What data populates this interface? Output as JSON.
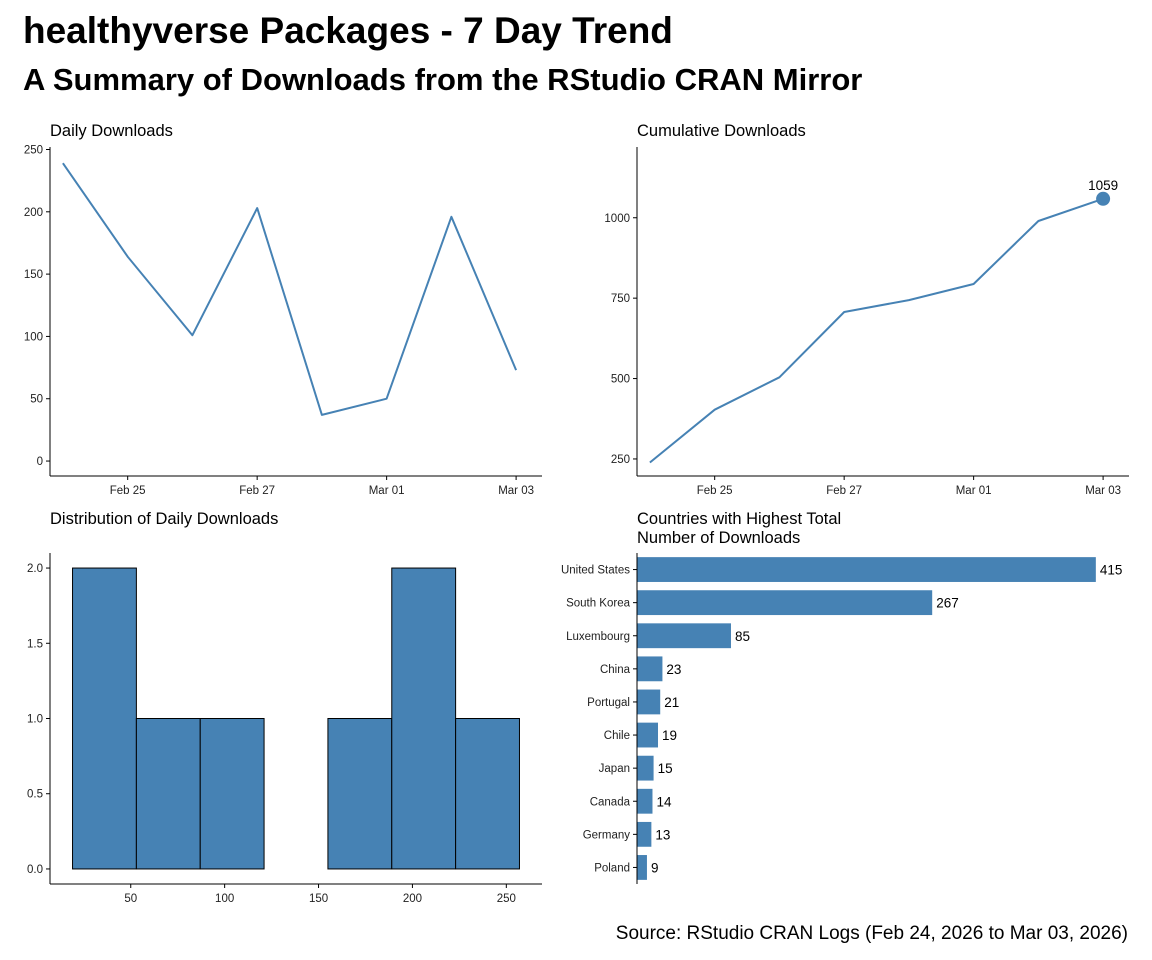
{
  "page": {
    "title": "healthyverse Packages - 7 Day Trend",
    "subtitle": "A Summary of Downloads from the RStudio CRAN Mirror",
    "caption": "Source: RStudio CRAN Logs (Feb 24, 2026 to Mar 03, 2026)"
  },
  "colors": {
    "accent": "#4682b4",
    "axis": "#000000",
    "bar_outline": "#000000"
  },
  "chart_data": [
    {
      "id": "daily",
      "type": "line",
      "title": "Daily Downloads",
      "xlabel": "",
      "ylabel": "",
      "x": [
        "2026-02-24",
        "2026-02-25",
        "2026-02-26",
        "2026-02-27",
        "2026-02-28",
        "2026-03-01",
        "2026-03-02",
        "2026-03-03"
      ],
      "values": [
        239,
        164,
        101,
        203,
        37,
        50,
        196,
        73
      ],
      "xticks": [
        1,
        3,
        5,
        7
      ],
      "xtick_labels": [
        "Feb 25",
        "Feb 27",
        "Mar 01",
        "Mar 03"
      ],
      "yticks": [
        0,
        50,
        100,
        150,
        200,
        250
      ],
      "xlim": [
        -0.2,
        7.4
      ],
      "ylim": [
        -12,
        252
      ],
      "grid": false
    },
    {
      "id": "cumulative",
      "type": "line",
      "title": "Cumulative Downloads",
      "xlabel": "",
      "ylabel": "",
      "x": [
        "2026-02-24",
        "2026-02-25",
        "2026-02-26",
        "2026-02-27",
        "2026-02-28",
        "2026-03-01",
        "2026-03-02",
        "2026-03-03"
      ],
      "values": [
        239,
        403,
        504,
        707,
        744,
        794,
        990,
        1059
      ],
      "xticks": [
        1,
        3,
        5,
        7
      ],
      "xtick_labels": [
        "Feb 25",
        "Feb 27",
        "Mar 01",
        "Mar 03"
      ],
      "yticks": [
        250,
        500,
        750,
        1000
      ],
      "xlim": [
        -0.2,
        7.4
      ],
      "ylim": [
        197,
        1220
      ],
      "end_label": "1059",
      "grid": false
    },
    {
      "id": "histogram",
      "type": "bar",
      "title": "Distribution of Daily Downloads",
      "xlabel": "",
      "ylabel": "",
      "bins": [
        {
          "from": 19,
          "to": 53,
          "count": 2
        },
        {
          "from": 53,
          "to": 87,
          "count": 1
        },
        {
          "from": 87,
          "to": 121,
          "count": 1
        },
        {
          "from": 121,
          "to": 155,
          "count": 0
        },
        {
          "from": 155,
          "to": 189,
          "count": 1
        },
        {
          "from": 189,
          "to": 223,
          "count": 2
        },
        {
          "from": 223,
          "to": 257,
          "count": 1
        }
      ],
      "xticks": [
        50,
        100,
        150,
        200,
        250
      ],
      "xtick_labels": [
        "50",
        "100",
        "150",
        "200",
        "250"
      ],
      "yticks": [
        0,
        0.5,
        1,
        1.5,
        2
      ],
      "ytick_labels": [
        "0.0",
        "0.5",
        "1.0",
        "1.5",
        "2.0"
      ],
      "xlim": [
        7,
        269
      ],
      "ylim": [
        -0.1,
        2.1
      ],
      "grid": false
    },
    {
      "id": "countries",
      "type": "bar",
      "orientation": "horizontal",
      "title": "Countries with Highest Total Number of Downloads",
      "title_lines": [
        "Countries with Highest Total",
        "Number of Downloads"
      ],
      "xlabel": "",
      "ylabel": "",
      "categories": [
        "United States",
        "South Korea",
        "Luxembourg",
        "China",
        "Portugal",
        "Chile",
        "Japan",
        "Canada",
        "Germany",
        "Poland"
      ],
      "values": [
        415,
        267,
        85,
        23,
        21,
        19,
        15,
        14,
        13,
        9
      ],
      "xlim": [
        0,
        445
      ],
      "grid": false
    }
  ]
}
